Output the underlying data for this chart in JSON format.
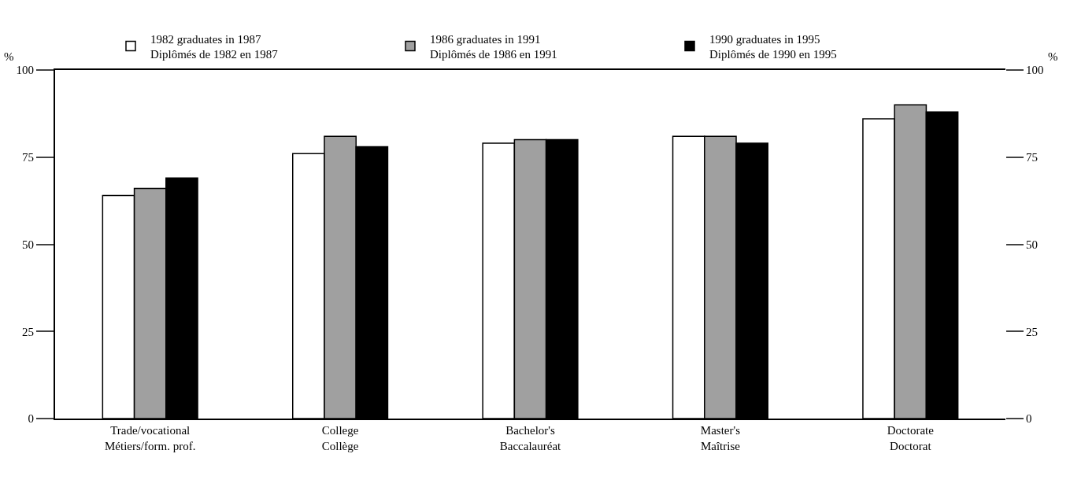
{
  "chart_data": {
    "type": "bar",
    "ylabel": "%",
    "y2label": "%",
    "categories": [
      "Trade/vocational\nMétiers/form. prof.",
      "College\nCollège",
      "Bachelor's\nBaccalauréat",
      "Master's\nMaîtrise",
      "Doctorate\nDoctorat"
    ],
    "series": [
      {
        "name": "1982 graduates in 1987\nDiplômés de 1982 en 1987",
        "color": "#ffffff",
        "values": [
          64,
          76,
          79,
          81,
          86
        ]
      },
      {
        "name": "1986 graduates in 1991\nDiplômés de 1986 en 1991",
        "color": "#a0a0a0",
        "values": [
          66,
          81,
          80,
          81,
          90
        ]
      },
      {
        "name": "1990 graduates in 1995\nDiplômés de 1990 en 1995",
        "color": "#000000",
        "values": [
          69,
          78,
          80,
          79,
          88
        ]
      }
    ],
    "ylim": [
      0,
      100
    ],
    "yticks": [
      0,
      25,
      50,
      75,
      100
    ],
    "y2lim": [
      0,
      100
    ],
    "y2ticks": [
      0,
      25,
      50,
      75,
      100
    ],
    "legend": "top"
  }
}
